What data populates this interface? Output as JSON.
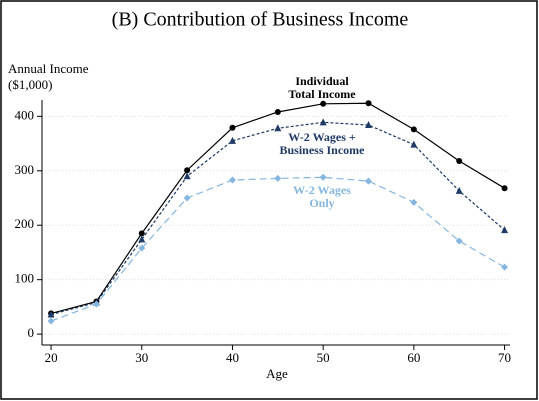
{
  "chart_data": {
    "type": "line",
    "title": "(B)  Contribution of Business Income",
    "ylabel": [
      "Annual Income",
      "($1,000)"
    ],
    "xlabel": "Age",
    "x": [
      20,
      25,
      30,
      35,
      40,
      45,
      50,
      55,
      60,
      65,
      70
    ],
    "series": [
      {
        "name": "Individual Total Income",
        "color": "#000000",
        "marker": "circle",
        "dash": "none",
        "values": [
          38,
          60,
          185,
          301,
          379,
          408,
          423,
          424,
          376,
          318,
          268
        ]
      },
      {
        "name": "W-2 Wages + Business Income",
        "color": "#1f3a64",
        "marker": "triangle",
        "dash": "3,2",
        "values": [
          36,
          58,
          174,
          290,
          355,
          378,
          389,
          384,
          348,
          263,
          191
        ]
      },
      {
        "name": "W-2 Wages Only",
        "color": "#85b6e0",
        "marker": "diamond",
        "dash": "7,4",
        "values": [
          24,
          55,
          158,
          250,
          283,
          286,
          288,
          281,
          242,
          171,
          123
        ]
      }
    ],
    "xlim": [
      19,
      70.6
    ],
    "xticks": [
      20,
      30,
      40,
      50,
      60,
      70
    ],
    "ylim": [
      -20,
      430
    ],
    "yticks": [
      0,
      100,
      200,
      300,
      400
    ],
    "grid": true
  }
}
